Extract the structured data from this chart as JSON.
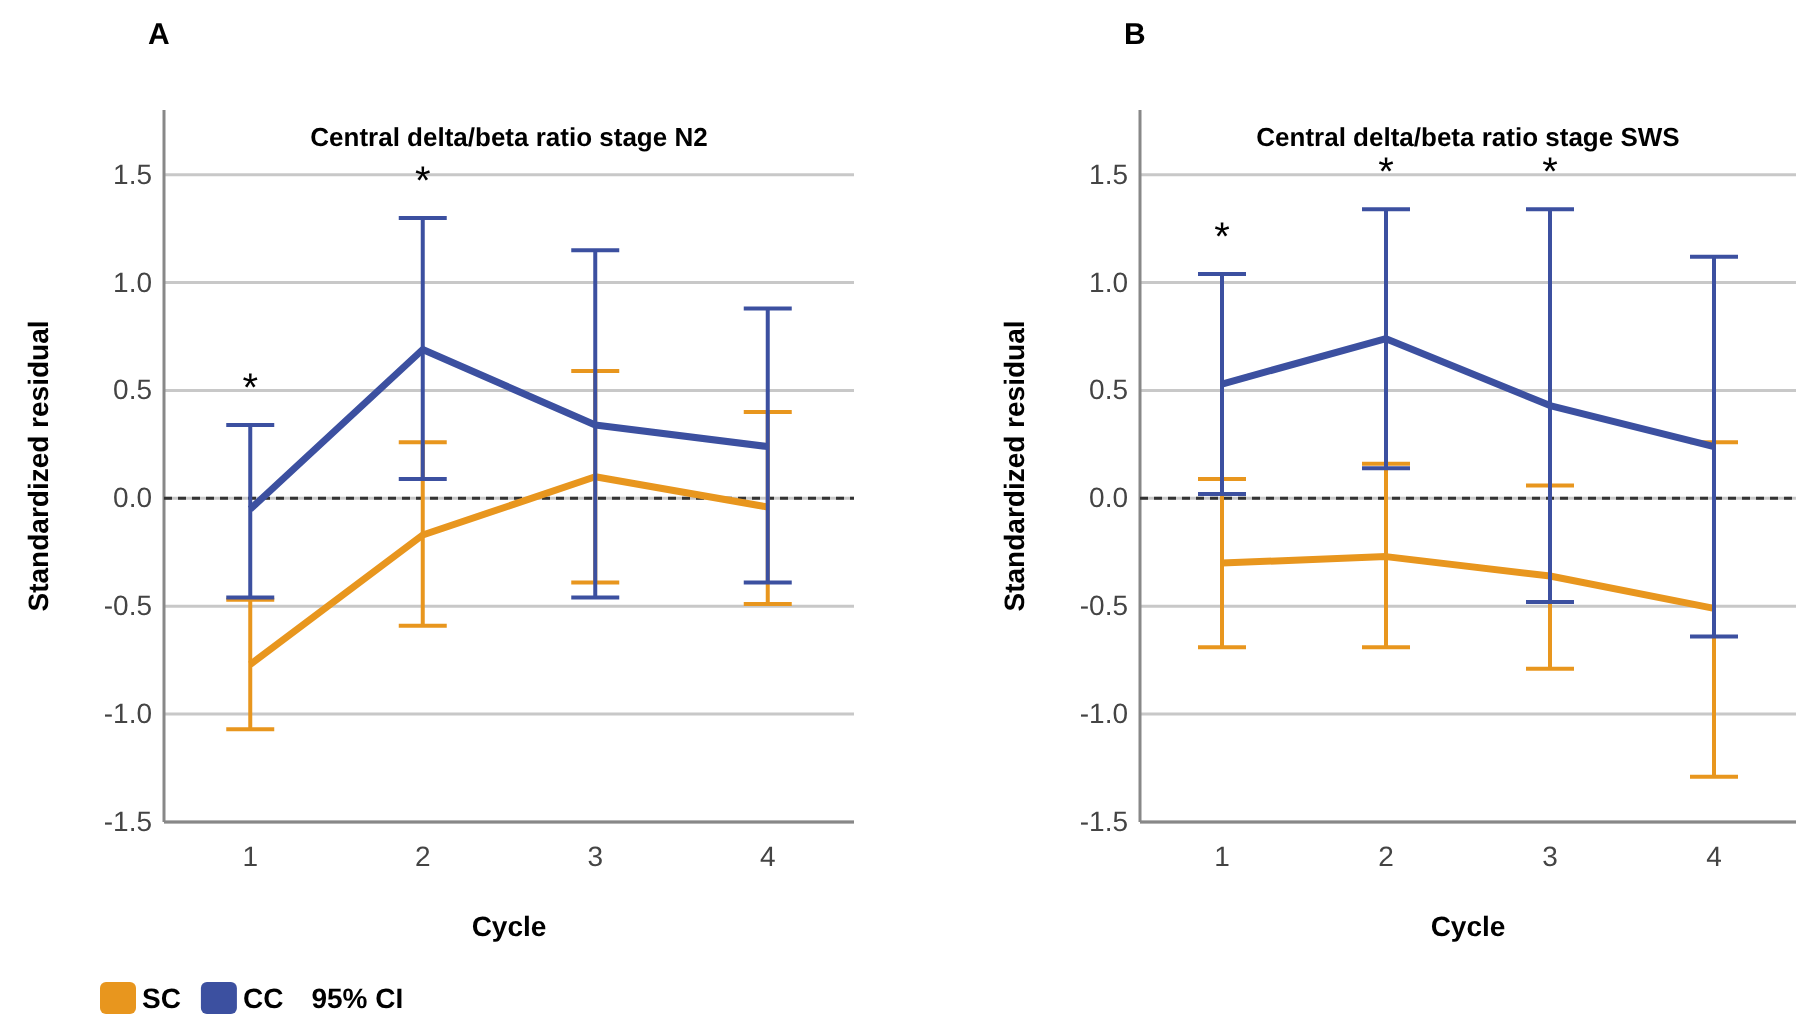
{
  "chart_data": [
    {
      "type": "line",
      "title": "Central delta/beta ratio stage N2",
      "xlabel": "Cycle",
      "ylabel": "Standardized residual",
      "categories": [
        "1",
        "2",
        "3",
        "4"
      ],
      "ylim": [
        -1.5,
        1.8
      ],
      "yticks": [
        -1.5,
        {
          "value": -1.0,
          "label": "-1.0"
        },
        -0.5,
        {
          "value": 0,
          "label": "0.0"
        },
        0.5,
        {
          "value": 1.0,
          "label": "1.0"
        },
        1.5
      ],
      "grid": "y",
      "legend": "bottom",
      "marker": "none",
      "line_style": "solid",
      "series": [
        {
          "name": "SC",
          "color": "#e8961e",
          "values": [
            -0.77,
            -0.17,
            0.1,
            -0.04
          ],
          "errors": [
            [
              -1.07,
              -0.47
            ],
            [
              -0.59,
              0.26
            ],
            [
              -0.39,
              0.59
            ],
            [
              -0.49,
              0.4
            ]
          ]
        },
        {
          "name": "CC",
          "color": "#3c50a0",
          "values": [
            -0.05,
            0.69,
            0.34,
            0.24
          ],
          "errors": [
            [
              -0.46,
              0.34
            ],
            [
              0.09,
              1.3
            ],
            [
              -0.46,
              1.15
            ],
            [
              -0.39,
              0.88
            ]
          ]
        }
      ],
      "ref_lines": [
        {
          "axis": "y",
          "value": 0,
          "line_style": "dashed",
          "color": "#333333"
        }
      ],
      "annotations": [
        "A",
        "95% CI",
        {
          "text": "*",
          "x": "1",
          "y": 0.34
        },
        {
          "text": "*",
          "x": "2",
          "y": 1.3
        }
      ]
    },
    {
      "type": "line",
      "title": "Central delta/beta ratio stage SWS",
      "xlabel": "Cycle",
      "ylabel": "Standardized residual",
      "categories": [
        "1",
        "2",
        "3",
        "4"
      ],
      "ylim": [
        -1.5,
        1.8
      ],
      "yticks": [
        -1.5,
        {
          "value": -1.0,
          "label": "-1.0"
        },
        -0.5,
        {
          "value": 0,
          "label": "0.0"
        },
        0.5,
        {
          "value": 1.0,
          "label": "1.0"
        },
        1.5
      ],
      "grid": "y",
      "marker": "none",
      "line_style": "solid",
      "series": [
        {
          "color": "#e8961e",
          "values": [
            -0.3,
            -0.27,
            -0.36,
            -0.51
          ],
          "errors": [
            [
              -0.69,
              0.09
            ],
            [
              -0.69,
              0.16
            ],
            [
              -0.79,
              0.06
            ],
            [
              -1.29,
              0.26
            ]
          ]
        },
        {
          "color": "#3c50a0",
          "values": [
            0.53,
            0.74,
            0.43,
            0.24
          ],
          "errors": [
            [
              0.02,
              1.04
            ],
            [
              0.14,
              1.34
            ],
            [
              -0.48,
              1.34
            ],
            [
              -0.64,
              1.12
            ]
          ]
        }
      ],
      "ref_lines": [
        {
          "axis": "y",
          "value": 0,
          "line_style": "dashed",
          "color": "#333333"
        }
      ],
      "annotations": [
        "B",
        {
          "text": "*",
          "x": "1",
          "y": 1.04
        },
        {
          "text": "*",
          "x": "2",
          "y": 1.34
        },
        {
          "text": "*",
          "x": "3",
          "y": 1.34
        }
      ]
    }
  ]
}
